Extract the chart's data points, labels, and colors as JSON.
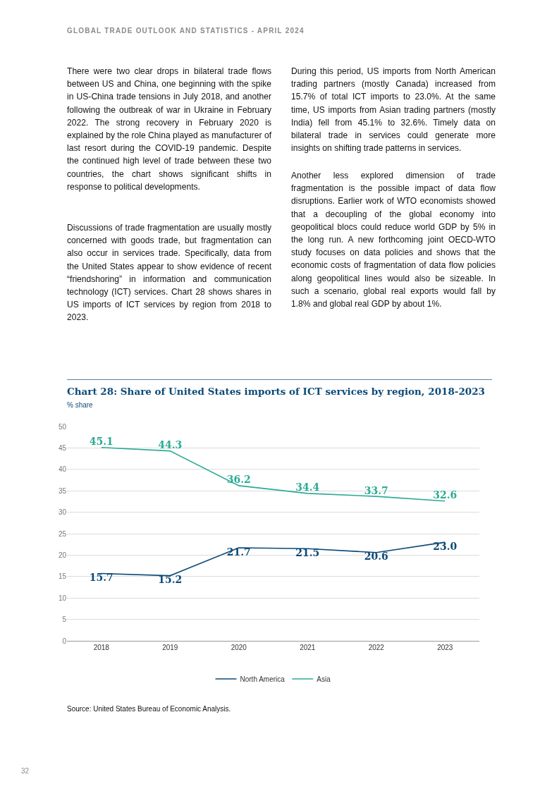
{
  "chart_data": {
    "type": "line",
    "title": "Chart 28: Share of United States imports of ICT services by region, 2018-2023",
    "subtitle": "% share",
    "categories": [
      "2018",
      "2019",
      "2020",
      "2021",
      "2022",
      "2023"
    ],
    "series": [
      {
        "name": "North America",
        "color": "#0b4a78",
        "values": [
          15.7,
          15.2,
          21.7,
          21.5,
          20.6,
          23.0
        ],
        "value_labels": [
          "15.7",
          "15.2",
          "21.7",
          "21.5",
          "20.6",
          "23.0"
        ]
      },
      {
        "name": "Asia",
        "color": "#2bab94",
        "values": [
          45.1,
          44.3,
          36.2,
          34.4,
          33.7,
          32.6
        ],
        "value_labels": [
          "45.1",
          "44.3",
          "36.2",
          "34.4",
          "33.7",
          "32.6"
        ]
      }
    ],
    "ylim": [
      0,
      50
    ],
    "yticks": [
      0,
      5,
      10,
      15,
      20,
      25,
      30,
      35,
      40,
      45,
      50
    ],
    "grid": "y",
    "legend": "bottom",
    "marker": "none",
    "line_style": "solid",
    "annotations": [
      "GLOBAL TRADE OUTLOOK AND STATISTICS - APRIL 2024",
      "There were two clear drops in bilateral trade flows between US and China, one beginning with the spike in US-China trade tensions in July 2018, and another following the outbreak of war in Ukraine in February 2022. The strong recovery in February 2020 is explained by the role China played as manufacturer of last resort during the COVID-19 pandemic. Despite the continued high level of trade between these two countries, the chart shows significant shifts in response to political developments.",
      "Discussions of trade fragmentation are usually mostly concerned with goods trade, but fragmentation can also occur in services trade. Specifically, data from the United States appear to show evidence of recent “friendshoring” in information and communication technology (ICT) services. Chart 28 shows shares in US imports of ICT services by region from 2018 to 2023.",
      "During this period, US imports from North American trading partners (mostly Canada) increased from 15.7% of total ICT imports to 23.0%. At the same time, US imports from Asian trading partners (mostly India) fell from 45.1% to 32.6%. Timely data on bilateral trade in services could generate more insights on shifting trade patterns in services.",
      "Another less explored dimension of trade fragmentation is the possible impact of data flow disruptions. Earlier work of WTO economists showed that a decoupling of the global economy into geopolitical blocs could reduce world GDP by 5% in the long run. A new forthcoming joint OECD-WTO study focuses on data policies and shows that the economic costs of fragmentation of data flow policies along geopolitical lines would also be sizeable. In such a scenario, global real exports would fall by 1.8% and global real GDP by about 1%.",
      "Source: United States Bureau of Economic Analysis.",
      "32"
    ]
  }
}
